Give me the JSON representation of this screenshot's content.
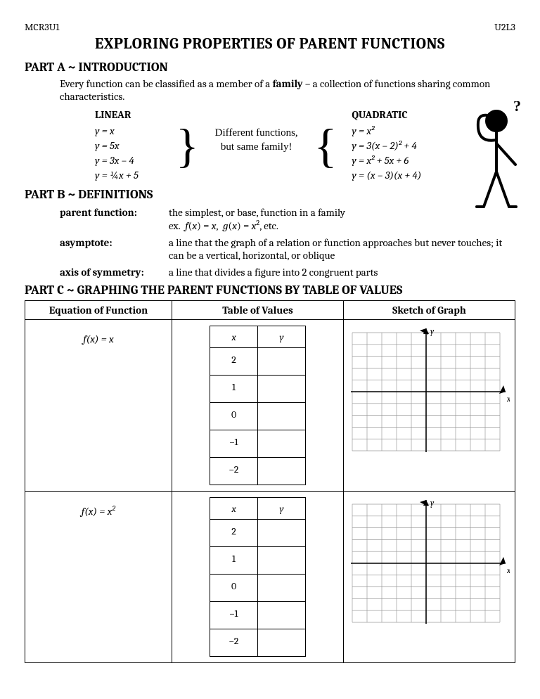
{
  "header": {
    "left": "MCR3U1",
    "right": "U2L3"
  },
  "title": "EXPLORING PROPERTIES OF PARENT FUNCTIONS",
  "partA": {
    "heading": "PART A ~ INTRODUCTION",
    "intro_pre": "Every function can be classified as a member of a ",
    "intro_bold": "family",
    "intro_post": " – a collection of functions sharing common characteristics.",
    "linear_title": "LINEAR",
    "linear_eqs": [
      "y = x",
      "y = 5x",
      "y = 3x – 4",
      "y = ¼x + 5"
    ],
    "note_l1": "Different functions,",
    "note_l2": "but same family!",
    "quad_title": "QUADRATIC",
    "quad_eqs": [
      "y = x²",
      "y = 3(x – 2)² + 4",
      "y = x² + 5x + 6",
      "y = (x – 3)(x + 4)"
    ]
  },
  "partB": {
    "heading": "PART B ~ DEFINITIONS",
    "defs": [
      {
        "term": "parent function:",
        "text_l1": "the simplest, or base, function in a family",
        "text_l2": "ex.  f(x) = x,  g(x) = x², etc."
      },
      {
        "term": "asymptote:",
        "text_l1": "a line that the graph of a relation or function approaches but never touches;  it can be a vertical, horizontal, or oblique",
        "text_l2": ""
      },
      {
        "term": "axis of symmetry:",
        "text_l1": "a line that divides a figure into 2 congruent parts",
        "text_l2": ""
      }
    ]
  },
  "partC": {
    "heading": "PART C ~ GRAPHING THE PARENT FUNCTIONS BY TABLE OF VALUES",
    "cols": [
      "Equation of Function",
      "Table of Values",
      "Sketch of Graph"
    ],
    "tv_headers": [
      "x",
      "y"
    ],
    "rows": [
      {
        "eq_html": "f(x) = x",
        "xvals": [
          "2",
          "1",
          "0",
          "–1",
          "–2"
        ]
      },
      {
        "eq_html": "f(x) = x²",
        "xvals": [
          "2",
          "1",
          "0",
          "–1",
          "–2"
        ]
      }
    ],
    "axis_labels": {
      "x": "x",
      "y": "y"
    }
  },
  "graph_style": {
    "size": 210,
    "grid": 10,
    "cell": 20,
    "grid_color": "#9a9a9a",
    "axis_color": "#000000",
    "bg": "#ffffff",
    "label_fontsize": 12
  }
}
